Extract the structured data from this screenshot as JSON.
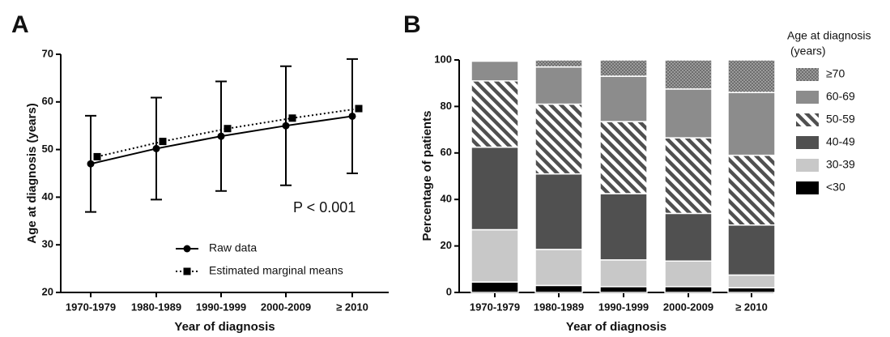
{
  "chart_data": [
    {
      "type": "line",
      "panel_label": "A",
      "x_label": "Year of diagnosis",
      "y_label": "Age at diagnosis (years)",
      "annotation": "P < 0.001",
      "categories": [
        "1970-1979",
        "1980-1989",
        "1990-1999",
        "2000-2009",
        "≥ 2010"
      ],
      "ylim": [
        20,
        70
      ],
      "yticks": [
        20,
        30,
        40,
        50,
        60,
        70
      ],
      "series": [
        {
          "name": "Raw data",
          "color": "#000000",
          "marker": "circle",
          "dash": "solid",
          "values": [
            47,
            50.2,
            52.8,
            55,
            57
          ],
          "errors": [
            10.1,
            10.7,
            11.5,
            12.5,
            12
          ]
        },
        {
          "name": "Estimated marginal means",
          "color": "#000000",
          "marker": "square",
          "dash": "dotted",
          "values": [
            48.5,
            51.7,
            54.4,
            56.6,
            58.6
          ]
        }
      ]
    },
    {
      "type": "stacked_bar",
      "panel_label": "B",
      "x_label": "Year of diagnosis",
      "y_label": "Percentage of patients",
      "legend_title": [
        "Age at diagnosis",
        "(years)"
      ],
      "categories": [
        "1970-1979",
        "1980-1989",
        "1990-1999",
        "2000-2009",
        "≥ 2010"
      ],
      "ylim": [
        0,
        100
      ],
      "yticks": [
        0,
        20,
        40,
        60,
        80,
        100
      ],
      "series": [
        {
          "name": "<30",
          "color": "#000000",
          "pattern": "solid",
          "values": [
            4.5,
            3,
            2.5,
            2.5,
            2
          ]
        },
        {
          "name": "30-39",
          "color": "#c8c8c8",
          "pattern": "solid",
          "values": [
            22.5,
            15.5,
            11.5,
            11,
            5.5
          ]
        },
        {
          "name": "40-49",
          "color": "#505050",
          "pattern": "solid",
          "values": [
            35.5,
            32.5,
            28.5,
            20.5,
            21.5
          ]
        },
        {
          "name": "50-59",
          "color": "#505050",
          "pattern": "hatch",
          "values": [
            28.5,
            30,
            31,
            32.5,
            30
          ]
        },
        {
          "name": "60-69",
          "color": "#8c8c8c",
          "pattern": "solid",
          "values": [
            8.5,
            16,
            19.5,
            21,
            27
          ]
        },
        {
          "name": "≥70",
          "color": "#6e6e6e",
          "pattern": "dots",
          "values": [
            0.5,
            3,
            7,
            12.5,
            14
          ]
        }
      ]
    }
  ]
}
